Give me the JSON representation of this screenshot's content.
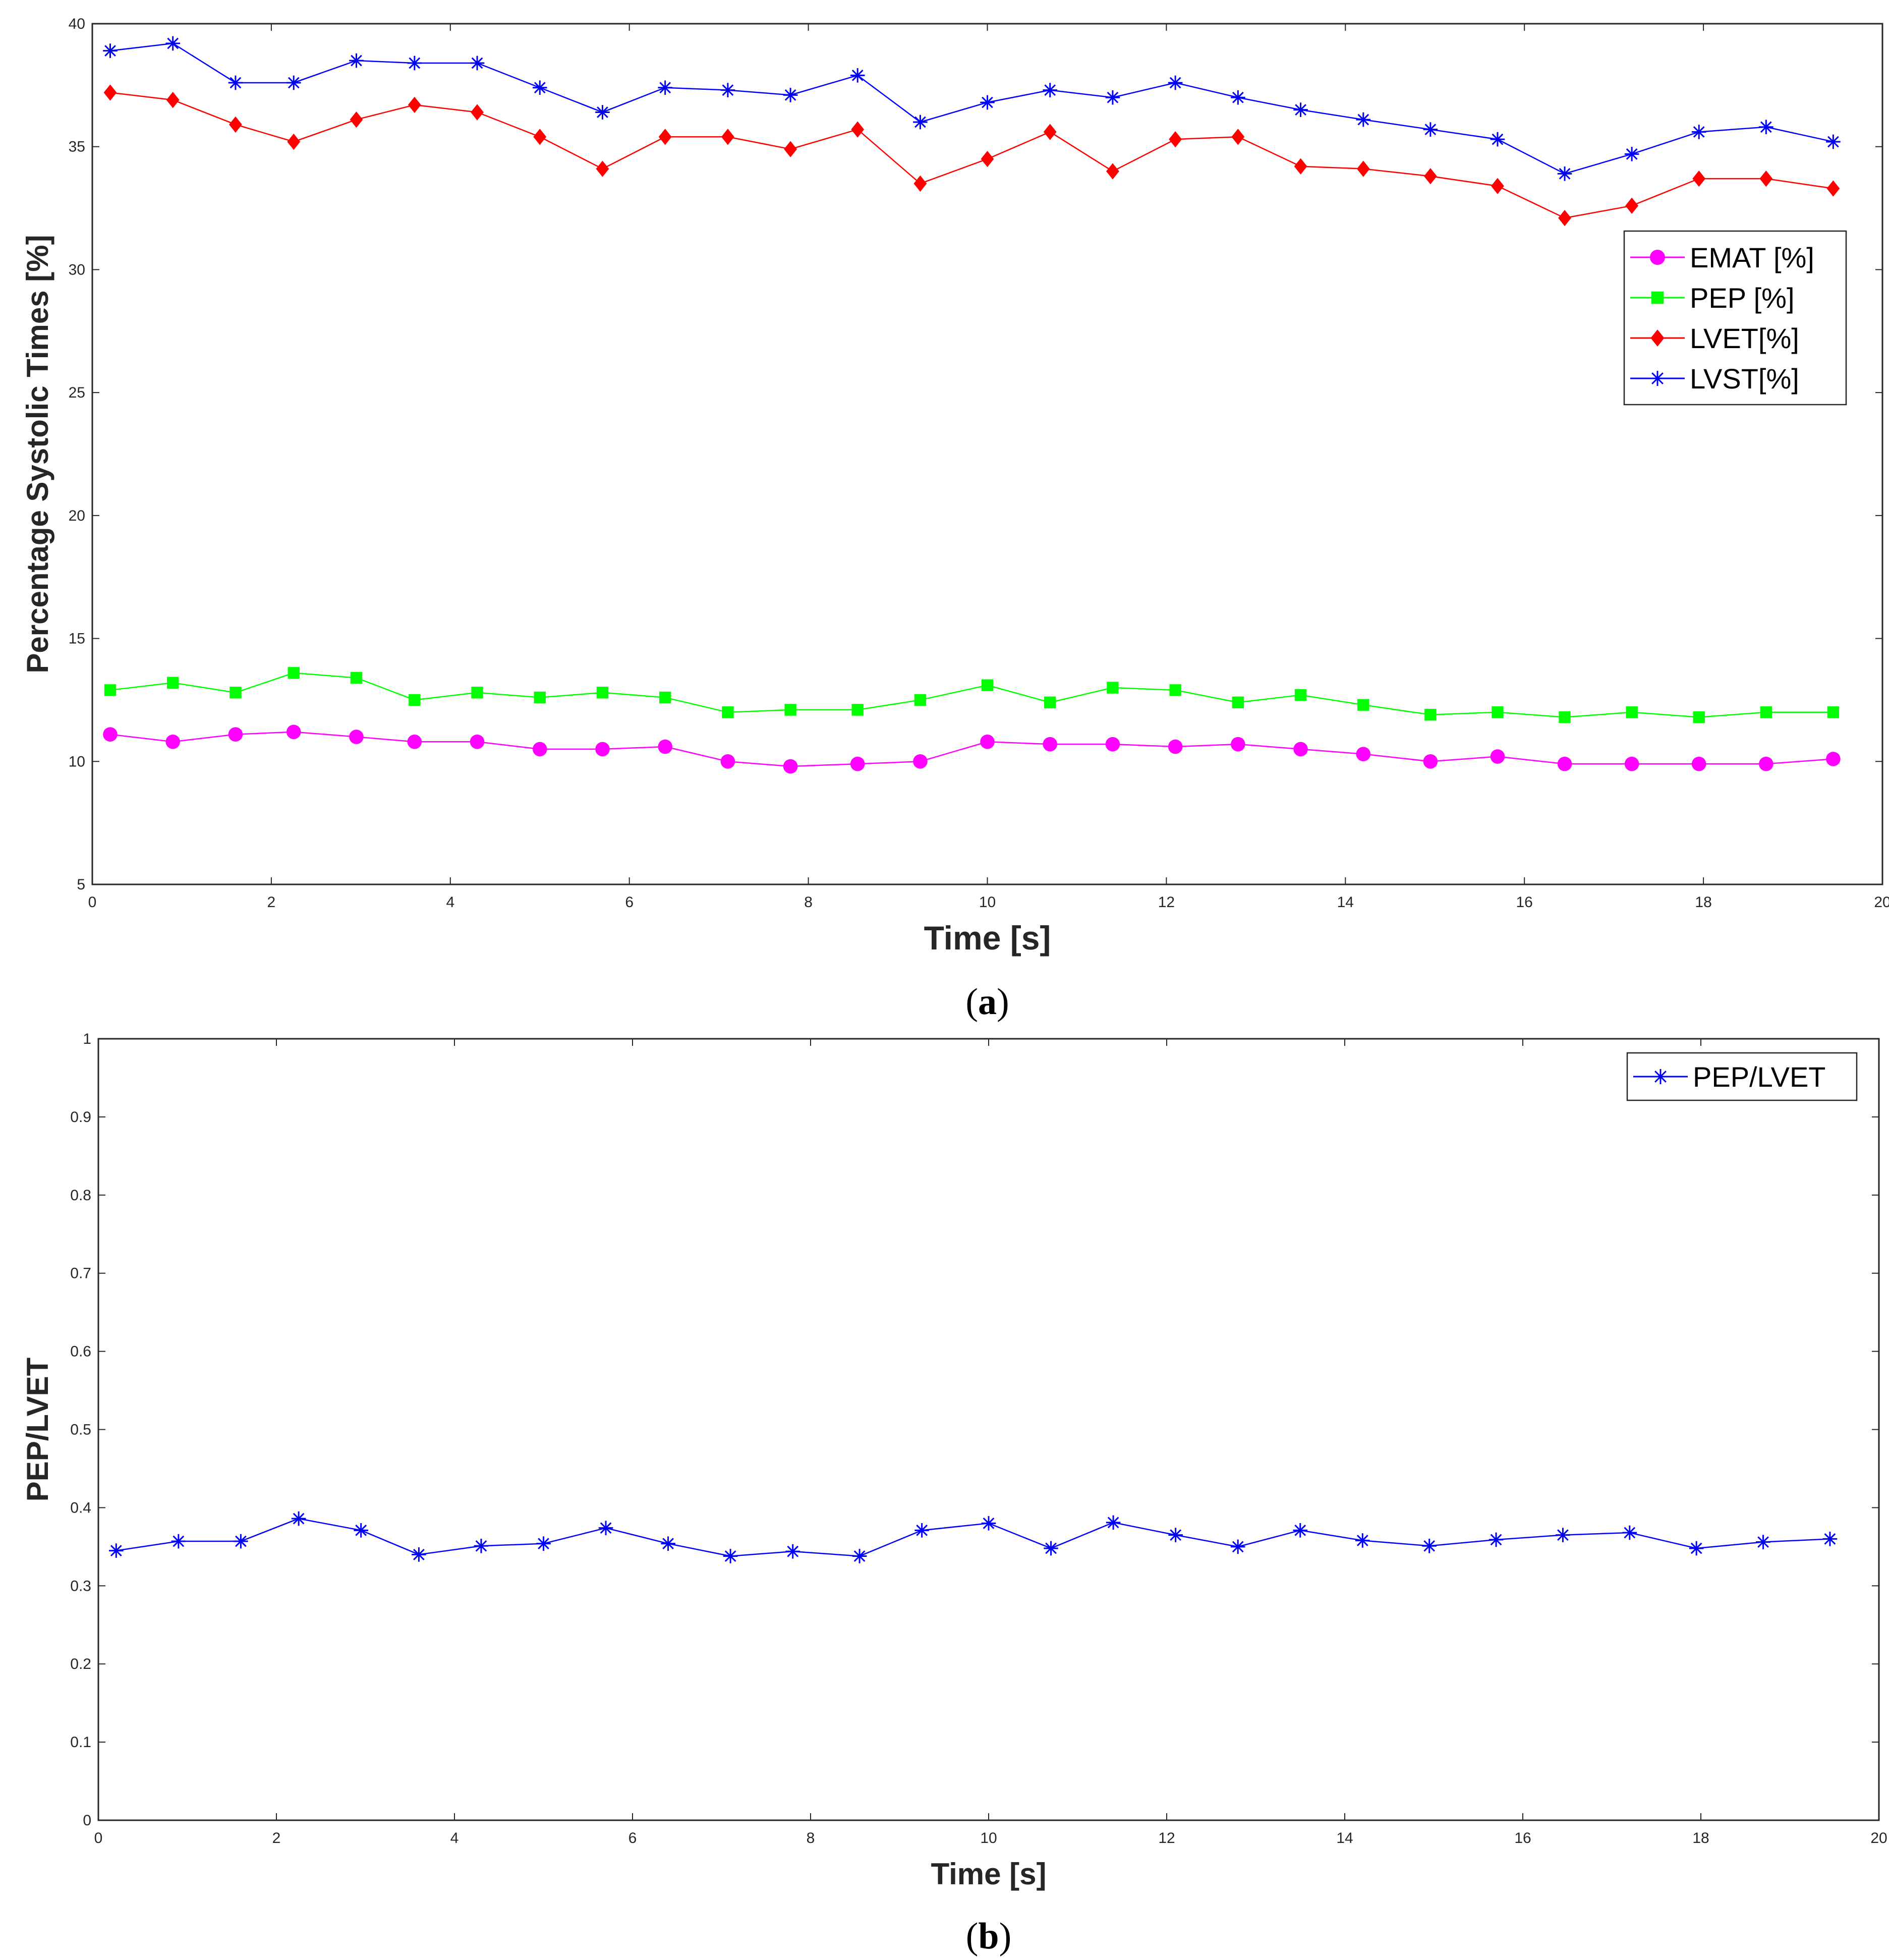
{
  "chart_data": [
    {
      "type": "line",
      "panel_label": "(a)",
      "panel_letter": "a",
      "title": "",
      "xlabel": "Time [s]",
      "ylabel": "Percentage Systolic Times [%]",
      "xlim": [
        0,
        20
      ],
      "ylim": [
        5,
        40
      ],
      "xticks": [
        0,
        2,
        4,
        6,
        8,
        10,
        12,
        14,
        16,
        18,
        20
      ],
      "yticks": [
        5,
        10,
        15,
        20,
        25,
        30,
        35,
        40
      ],
      "grid": false,
      "legend_position": "upper-right",
      "x": [
        0.2,
        0.9,
        1.6,
        2.25,
        2.95,
        3.6,
        4.3,
        5.0,
        5.7,
        6.4,
        7.1,
        7.8,
        8.55,
        9.25,
        10.0,
        10.7,
        11.4,
        12.1,
        12.8,
        13.5,
        14.2,
        14.95,
        15.7,
        16.45,
        17.2,
        17.95,
        18.7,
        19.45
      ],
      "series": [
        {
          "name": "EMAT [%]",
          "color": "#ff00ff",
          "marker": "circle",
          "values": [
            11.1,
            10.8,
            11.1,
            11.2,
            11.0,
            10.8,
            10.8,
            10.5,
            10.5,
            10.6,
            10.0,
            9.8,
            9.9,
            10.0,
            10.8,
            10.7,
            10.7,
            10.6,
            10.7,
            10.5,
            10.3,
            10.0,
            10.2,
            9.9,
            9.9,
            9.9,
            9.9,
            10.1
          ]
        },
        {
          "name": "PEP [%]",
          "color": "#00ff00",
          "marker": "square",
          "values": [
            12.9,
            13.2,
            12.8,
            13.6,
            13.4,
            12.5,
            12.8,
            12.6,
            12.8,
            12.6,
            12.0,
            12.1,
            12.1,
            12.5,
            13.1,
            12.4,
            13.0,
            12.9,
            12.4,
            12.7,
            12.3,
            11.9,
            12.0,
            11.8,
            12.0,
            11.8,
            12.0,
            12.0
          ]
        },
        {
          "name": "LVET[%]",
          "color": "#ff0000",
          "marker": "diamond",
          "values": [
            37.2,
            36.9,
            35.9,
            35.2,
            36.1,
            36.7,
            36.4,
            35.4,
            34.1,
            35.4,
            35.4,
            34.9,
            35.7,
            33.5,
            34.5,
            35.6,
            34.0,
            35.3,
            35.4,
            34.2,
            34.1,
            33.8,
            33.4,
            32.1,
            32.6,
            33.7,
            33.7,
            33.3
          ]
        },
        {
          "name": "LVST[%]",
          "color": "#0000ff",
          "marker": "star",
          "values": [
            38.9,
            39.2,
            37.6,
            37.6,
            38.5,
            38.4,
            38.4,
            37.4,
            36.4,
            37.4,
            37.3,
            37.1,
            37.9,
            36.0,
            36.8,
            37.3,
            37.0,
            37.6,
            37.0,
            36.5,
            36.1,
            35.7,
            35.3,
            33.9,
            34.7,
            35.6,
            35.8,
            35.2
          ]
        }
      ]
    },
    {
      "type": "line",
      "panel_label": "(b)",
      "panel_letter": "b",
      "title": "",
      "xlabel": "Time [s]",
      "ylabel": "PEP/LVET",
      "xlim": [
        0,
        20
      ],
      "ylim": [
        0,
        1
      ],
      "xticks": [
        0,
        2,
        4,
        6,
        8,
        10,
        12,
        14,
        16,
        18,
        20
      ],
      "yticks": [
        0,
        0.1,
        0.2,
        0.3,
        0.4,
        0.5,
        0.6,
        0.7,
        0.8,
        0.9,
        1
      ],
      "grid": false,
      "legend_position": "upper-right",
      "x": [
        0.2,
        0.9,
        1.6,
        2.25,
        2.95,
        3.6,
        4.3,
        5.0,
        5.7,
        6.4,
        7.1,
        7.8,
        8.55,
        9.25,
        10.0,
        10.7,
        11.4,
        12.1,
        12.8,
        13.5,
        14.2,
        14.95,
        15.7,
        16.45,
        17.2,
        17.95,
        18.7,
        19.45
      ],
      "series": [
        {
          "name": "PEP/LVET",
          "color": "#0000ff",
          "marker": "star",
          "values": [
            0.345,
            0.357,
            0.357,
            0.386,
            0.371,
            0.34,
            0.351,
            0.354,
            0.374,
            0.354,
            0.338,
            0.344,
            0.338,
            0.371,
            0.38,
            0.348,
            0.381,
            0.365,
            0.35,
            0.371,
            0.358,
            0.351,
            0.359,
            0.365,
            0.368,
            0.348,
            0.356,
            0.36
          ]
        }
      ]
    }
  ]
}
